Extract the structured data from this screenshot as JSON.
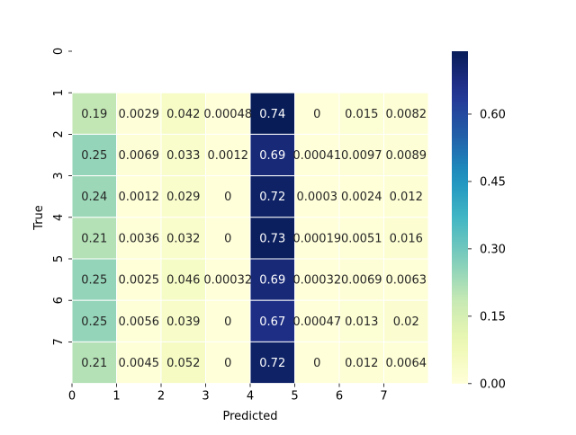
{
  "chart_data": {
    "type": "heatmap",
    "xlabel": "Predicted",
    "ylabel": "True",
    "x_tick_labels": [
      "0",
      "1",
      "2",
      "3",
      "4",
      "5",
      "6",
      "7"
    ],
    "y_tick_labels": [
      "0",
      "1",
      "2",
      "3",
      "4",
      "5",
      "6",
      "7"
    ],
    "rows": [
      {
        "true_label": "1",
        "values": [
          0.19,
          0.0029,
          0.042,
          0.00048,
          0.74,
          0,
          0.015,
          0.0082
        ],
        "labels": [
          "0.19",
          "0.0029",
          "0.042",
          "0.00048",
          "0.74",
          "0",
          "0.015",
          "0.0082"
        ]
      },
      {
        "true_label": "2",
        "values": [
          0.25,
          0.0069,
          0.033,
          0.0012,
          0.69,
          0.00041,
          0.0097,
          0.0089
        ],
        "labels": [
          "0.25",
          "0.0069",
          "0.033",
          "0.0012",
          "0.69",
          "0.00041",
          "0.0097",
          "0.0089"
        ]
      },
      {
        "true_label": "3",
        "values": [
          0.24,
          0.0012,
          0.029,
          0,
          0.72,
          0.0003,
          0.0024,
          0.012
        ],
        "labels": [
          "0.24",
          "0.0012",
          "0.029",
          "0",
          "0.72",
          "0.0003",
          "0.0024",
          "0.012"
        ]
      },
      {
        "true_label": "4",
        "values": [
          0.21,
          0.0036,
          0.032,
          0,
          0.73,
          0.00019,
          0.0051,
          0.016
        ],
        "labels": [
          "0.21",
          "0.0036",
          "0.032",
          "0",
          "0.73",
          "0.00019",
          "0.0051",
          "0.016"
        ]
      },
      {
        "true_label": "5",
        "values": [
          0.25,
          0.0025,
          0.046,
          0.00032,
          0.69,
          0.00032,
          0.0069,
          0.0063
        ],
        "labels": [
          "0.25",
          "0.0025",
          "0.046",
          "0.00032",
          "0.69",
          "0.00032",
          "0.0069",
          "0.0063"
        ]
      },
      {
        "true_label": "6",
        "values": [
          0.25,
          0.0056,
          0.039,
          0,
          0.67,
          0.00047,
          0.013,
          0.02
        ],
        "labels": [
          "0.25",
          "0.0056",
          "0.039",
          "0",
          "0.67",
          "0.00047",
          "0.013",
          "0.02"
        ]
      },
      {
        "true_label": "7",
        "values": [
          0.21,
          0.0045,
          0.052,
          0,
          0.72,
          0,
          0.012,
          0.0064
        ],
        "labels": [
          "0.21",
          "0.0045",
          "0.052",
          "0",
          "0.72",
          "0",
          "0.012",
          "0.0064"
        ]
      }
    ],
    "colorbar": {
      "colormap": "YlGnBu",
      "range": [
        0,
        0.74
      ],
      "tick_values": [
        0,
        0.15,
        0.3,
        0.45,
        0.6
      ],
      "tick_labels": [
        "0.00",
        "0.15",
        "0.30",
        "0.45",
        "0.60"
      ]
    },
    "cell_border_color": "#ffffff"
  }
}
